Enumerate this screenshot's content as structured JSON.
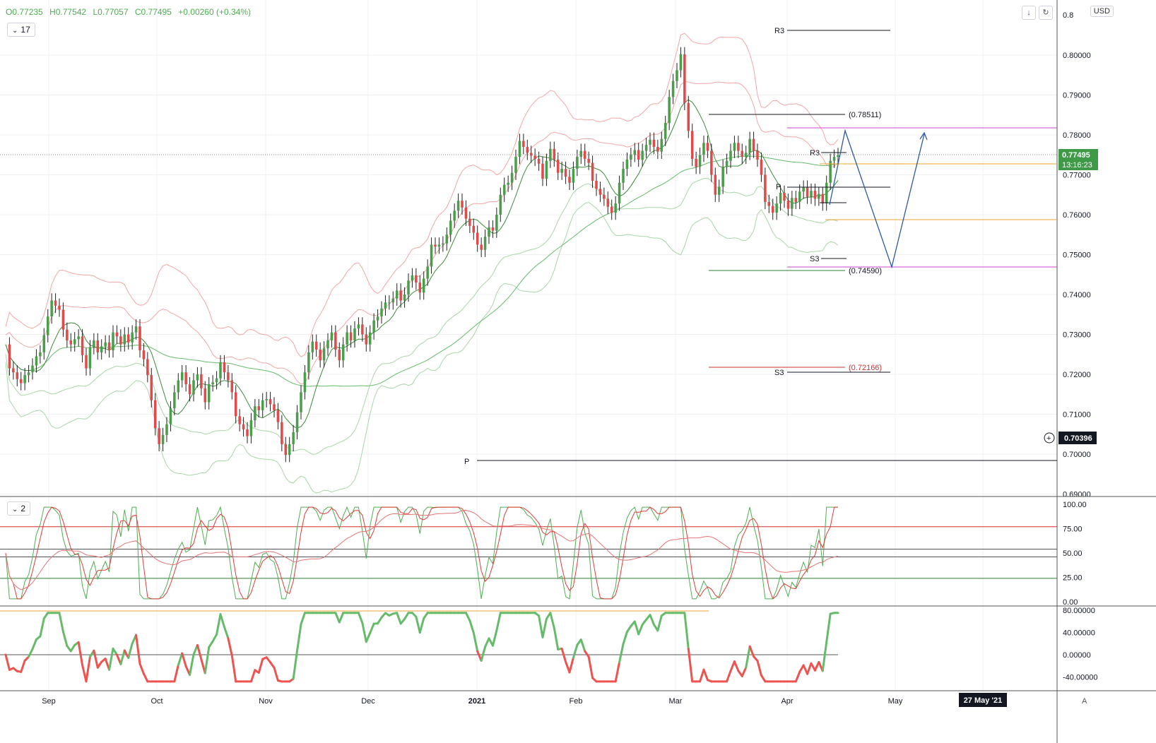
{
  "header": {
    "open": "O0.77235",
    "high": "H0.77542",
    "low": "L0.77057",
    "close": "C0.77495",
    "change": "+0.00260 (+0.34%)",
    "currency": "USD",
    "panel1_badge": "17",
    "panel2_badge": "2"
  },
  "colors": {
    "bull": "#4a9e4a",
    "bear": "#e04a4a",
    "band_upper": "#f4a6a6",
    "band_lower": "#a9d6a9",
    "ma_long": "#66bb6a",
    "projection": "#2a5aa0",
    "fib_magenta": "#cc44cc",
    "pivot_orange": "#f0a030"
  },
  "chart_data": [
    {
      "type": "candlestick",
      "price_axis": [
        "0.80000",
        "0.79000",
        "0.78000",
        "0.77000",
        "0.76000",
        "0.75000",
        "0.74000",
        "0.73000",
        "0.72000",
        "0.71000",
        "0.70000",
        "0.69000"
      ],
      "ylim": [
        0.6885,
        0.8125
      ],
      "time_labels": [
        "Sep",
        "Oct",
        "Nov",
        "Dec",
        "2021",
        "Feb",
        "Mar",
        "Apr",
        "May",
        "27 May '21"
      ],
      "last_price": "0.77495",
      "countdown": "13:16:23",
      "crosshair_price": "0.70396",
      "levels": {
        "r3_top": "R3",
        "fib_high": "(0.78511)",
        "r3_mid": "R3",
        "p_mid": "P",
        "s3_mid": "S3",
        "fib_low": "(0.74590)",
        "fib_red": "(0.72166)",
        "s3_low": "S3",
        "p_low": "P"
      },
      "closes": [
        0.7275,
        0.7215,
        0.7205,
        0.7188,
        0.7178,
        0.7198,
        0.7205,
        0.7222,
        0.7245,
        0.7255,
        0.7298,
        0.7345,
        0.7385,
        0.7372,
        0.7362,
        0.7312,
        0.7285,
        0.7275,
        0.7288,
        0.7295,
        0.7248,
        0.7215,
        0.7268,
        0.7285,
        0.7255,
        0.727,
        0.728,
        0.726,
        0.7305,
        0.7295,
        0.7275,
        0.73,
        0.728,
        0.7305,
        0.732,
        0.726,
        0.7238,
        0.7198,
        0.7135,
        0.7065,
        0.7025,
        0.7048,
        0.7075,
        0.7115,
        0.7155,
        0.7185,
        0.7205,
        0.7175,
        0.715,
        0.7185,
        0.72,
        0.7165,
        0.713,
        0.7175,
        0.718,
        0.719,
        0.723,
        0.7205,
        0.7185,
        0.7155,
        0.7095,
        0.7075,
        0.7062,
        0.7045,
        0.7085,
        0.712,
        0.711,
        0.7135,
        0.7138,
        0.7125,
        0.711,
        0.708,
        0.7025,
        0.6998,
        0.7025,
        0.7055,
        0.7105,
        0.7155,
        0.7205,
        0.7255,
        0.7282,
        0.7262,
        0.7235,
        0.7265,
        0.7285,
        0.7305,
        0.7262,
        0.7235,
        0.7275,
        0.7305,
        0.7285,
        0.7315,
        0.7325,
        0.73,
        0.7275,
        0.7305,
        0.7335,
        0.7345,
        0.7365,
        0.738,
        0.738,
        0.739,
        0.741,
        0.7385,
        0.74,
        0.7435,
        0.7448,
        0.743,
        0.7405,
        0.744,
        0.747,
        0.7525,
        0.752,
        0.7525,
        0.7528,
        0.755,
        0.7585,
        0.761,
        0.7635,
        0.7618,
        0.759,
        0.7572,
        0.7555,
        0.7525,
        0.7512,
        0.7545,
        0.7568,
        0.756,
        0.76,
        0.765,
        0.7675,
        0.768,
        0.7705,
        0.7745,
        0.7785,
        0.777,
        0.7755,
        0.7748,
        0.774,
        0.7728,
        0.769,
        0.7735,
        0.7765,
        0.7738,
        0.7705,
        0.7715,
        0.7695,
        0.768,
        0.7715,
        0.7745,
        0.776,
        0.774,
        0.773,
        0.7685,
        0.7665,
        0.765,
        0.764,
        0.762,
        0.7605,
        0.7628,
        0.768,
        0.7715,
        0.7738,
        0.775,
        0.7762,
        0.7738,
        0.776,
        0.7775,
        0.7788,
        0.777,
        0.7758,
        0.779,
        0.783,
        0.7895,
        0.7935,
        0.7962,
        0.8002,
        0.788,
        0.781,
        0.774,
        0.772,
        0.775,
        0.778,
        0.776,
        0.77,
        0.765,
        0.767,
        0.772,
        0.7735,
        0.776,
        0.778,
        0.776,
        0.7745,
        0.7755,
        0.779,
        0.776,
        0.7738,
        0.77,
        0.7632,
        0.7622,
        0.7605,
        0.7628,
        0.7655,
        0.7635,
        0.7615,
        0.7642,
        0.7632,
        0.7658,
        0.7668,
        0.7645,
        0.766,
        0.764,
        0.7652,
        0.7628,
        0.768,
        0.7735,
        0.7745,
        0.77495
      ],
      "oscillator1_axis": [
        "100.00",
        "75.00",
        "50.00",
        "25.00",
        "0.00"
      ],
      "oscillator2_axis": [
        "80.00000",
        "40.00000",
        "0.00000",
        "-40.00000"
      ]
    }
  ]
}
